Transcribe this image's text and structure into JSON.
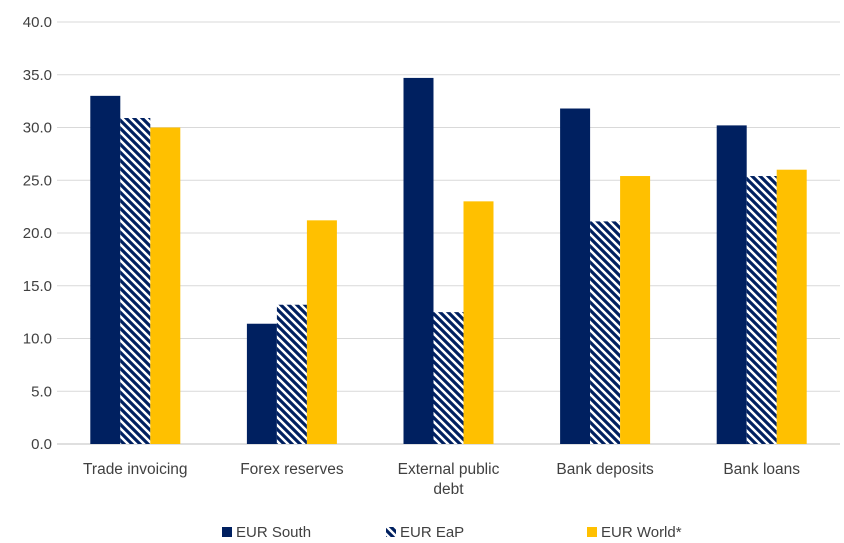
{
  "chart_data": {
    "type": "bar",
    "title": "",
    "xlabel": "",
    "ylabel": "",
    "ylim": [
      0,
      40
    ],
    "yticks": [
      "0.0",
      "5.0",
      "10.0",
      "15.0",
      "20.0",
      "25.0",
      "30.0",
      "35.0",
      "40.0"
    ],
    "grid": true,
    "legend_position": "bottom",
    "categories": [
      [
        "Trade invoicing"
      ],
      [
        "Forex reserves"
      ],
      [
        "External public",
        "debt"
      ],
      [
        "Bank deposits"
      ],
      [
        "Bank loans"
      ]
    ],
    "series": [
      {
        "name": "EUR South",
        "values": [
          33.0,
          11.4,
          34.7,
          31.8,
          30.2
        ],
        "color": "#002060",
        "pattern": "solid"
      },
      {
        "name": "EUR EaP",
        "values": [
          30.9,
          13.2,
          12.5,
          21.1,
          25.4
        ],
        "color": "#002060",
        "pattern": "diagonal-stripes"
      },
      {
        "name": "EUR World*",
        "values": [
          30.0,
          21.2,
          23.0,
          25.4,
          26.0
        ],
        "color": "#FFC000",
        "pattern": "solid"
      }
    ]
  }
}
